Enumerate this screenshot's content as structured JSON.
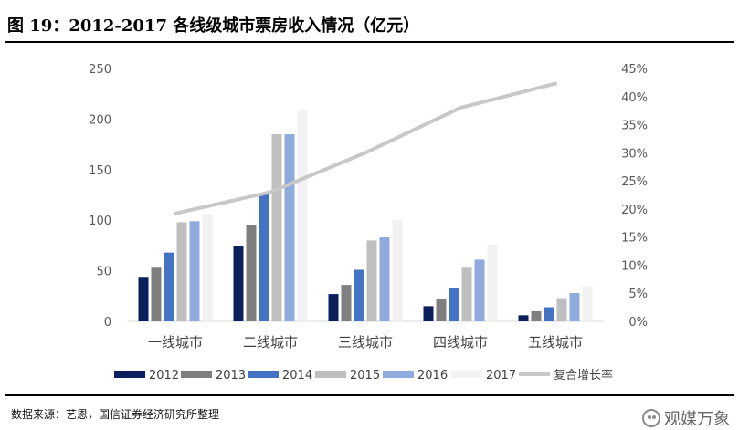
{
  "title": "图 19：2012-2017 各线级城市票房收入情况（亿元）",
  "source": "数据来源：艺恩，国信证券经济研究所整理",
  "watermark": "观媒万象",
  "chart_data": {
    "type": "bar",
    "categories": [
      "一线城市",
      "二线城市",
      "三线城市",
      "四线城市",
      "五线城市"
    ],
    "series": [
      {
        "name": "2012",
        "color": "#0b1f5c",
        "values": [
          44,
          74,
          27,
          15,
          6
        ]
      },
      {
        "name": "2013",
        "color": "#7f7f7f",
        "values": [
          53,
          95,
          36,
          22,
          10
        ]
      },
      {
        "name": "2014",
        "color": "#4472c4",
        "values": [
          68,
          127,
          51,
          33,
          14
        ]
      },
      {
        "name": "2015",
        "color": "#bfbfbf",
        "values": [
          98,
          185,
          80,
          53,
          23
        ]
      },
      {
        "name": "2016",
        "color": "#8faadc",
        "values": [
          99,
          185,
          83,
          61,
          28
        ]
      },
      {
        "name": "2017",
        "color": "#f2f2f2",
        "values": [
          106,
          209,
          100,
          76,
          35
        ]
      }
    ],
    "line": {
      "name": "复合增长率",
      "color": "#c8c8c8",
      "axis": "right",
      "values": [
        19.2,
        23.0,
        30.0,
        38.0,
        42.3
      ]
    },
    "ylim": [
      0,
      250
    ],
    "yticks": [
      0,
      50,
      100,
      150,
      200,
      250
    ],
    "y2lim": [
      0,
      45
    ],
    "y2ticks": [
      "0%",
      "5%",
      "10%",
      "15%",
      "20%",
      "25%",
      "30%",
      "35%",
      "40%",
      "45%"
    ],
    "legend_position": "bottom"
  }
}
